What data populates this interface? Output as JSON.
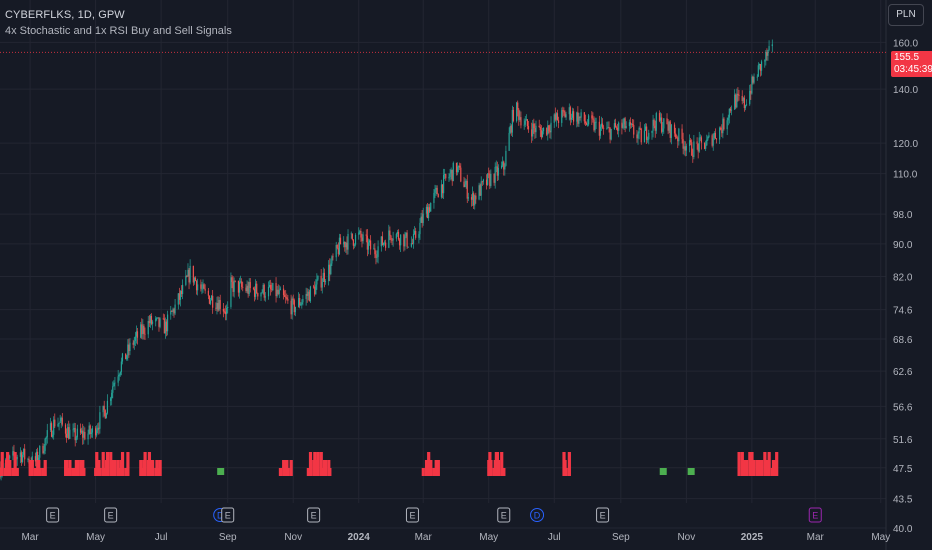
{
  "header": {
    "symbol_line": "CYBERFLKS, 1D, GPW",
    "indicator_line": "4x Stochastic and 1x RSI Buy and Sell Signals"
  },
  "toolbar": {
    "currency": "PLN"
  },
  "last_price": {
    "value": "155.5",
    "countdown": "03:45:39",
    "color": "#f23645"
  },
  "colors": {
    "background": "#161a25",
    "grid": "#232632",
    "up": "#26a69a",
    "down": "#ef5350",
    "sell_signal": "#f23645",
    "buy_signal": "#4caf50"
  },
  "chart_data": {
    "type": "candlestick",
    "title": "",
    "xlabel": "",
    "ylabel": "",
    "y_scale": "log",
    "ylim": [
      40.0,
      162.0
    ],
    "x_range": [
      "2023-02-01",
      "2025-05-31"
    ],
    "y_ticks": [
      160.0,
      140.0,
      120.0,
      110.0,
      98.0,
      90.0,
      82.0,
      74.6,
      68.6,
      62.6,
      56.6,
      51.6,
      47.5,
      43.5,
      40.0
    ],
    "x_ticks": [
      {
        "date": "2023-03-01",
        "label": "Mar",
        "bold": false
      },
      {
        "date": "2023-05-01",
        "label": "May",
        "bold": false
      },
      {
        "date": "2023-07-01",
        "label": "Jul",
        "bold": false
      },
      {
        "date": "2023-09-01",
        "label": "Sep",
        "bold": false
      },
      {
        "date": "2023-11-01",
        "label": "Nov",
        "bold": false
      },
      {
        "date": "2024-01-01",
        "label": "2024",
        "bold": true
      },
      {
        "date": "2024-03-01",
        "label": "Mar",
        "bold": false
      },
      {
        "date": "2024-05-01",
        "label": "May",
        "bold": false
      },
      {
        "date": "2024-07-01",
        "label": "Jul",
        "bold": false
      },
      {
        "date": "2024-09-01",
        "label": "Sep",
        "bold": false
      },
      {
        "date": "2024-11-01",
        "label": "Nov",
        "bold": false
      },
      {
        "date": "2025-01-01",
        "label": "2025",
        "bold": true
      },
      {
        "date": "2025-03-01",
        "label": "Mar",
        "bold": false
      },
      {
        "date": "2025-05-01",
        "label": "May",
        "bold": false
      }
    ],
    "price_path": [
      [
        "2023-02-01",
        47.5
      ],
      [
        "2023-02-20",
        49.5
      ],
      [
        "2023-03-05",
        48.0
      ],
      [
        "2023-03-25",
        54.5
      ],
      [
        "2023-04-10",
        52.0
      ],
      [
        "2023-04-28",
        52.5
      ],
      [
        "2023-05-10",
        56.0
      ],
      [
        "2023-05-20",
        62.0
      ],
      [
        "2023-06-05",
        68.0
      ],
      [
        "2023-06-20",
        72.0
      ],
      [
        "2023-07-05",
        71.0
      ],
      [
        "2023-07-20",
        78.0
      ],
      [
        "2023-07-28",
        83.0
      ],
      [
        "2023-08-10",
        78.0
      ],
      [
        "2023-08-25",
        76.0
      ],
      [
        "2023-09-01",
        74.0
      ],
      [
        "2023-09-03",
        80.0
      ],
      [
        "2023-09-20",
        79.0
      ],
      [
        "2023-10-15",
        78.5
      ],
      [
        "2023-11-01",
        75.0
      ],
      [
        "2023-11-20",
        79.0
      ],
      [
        "2023-12-05",
        84.0
      ],
      [
        "2023-12-15",
        90.0
      ],
      [
        "2024-01-01",
        92.0
      ],
      [
        "2024-01-15",
        88.0
      ],
      [
        "2024-02-01",
        93.0
      ],
      [
        "2024-02-20",
        90.0
      ],
      [
        "2024-03-01",
        97.0
      ],
      [
        "2024-03-15",
        105.0
      ],
      [
        "2024-04-01",
        112.0
      ],
      [
        "2024-04-15",
        102.0
      ],
      [
        "2024-05-01",
        108.0
      ],
      [
        "2024-05-15",
        112.0
      ],
      [
        "2024-05-25",
        133.0
      ],
      [
        "2024-06-05",
        126.0
      ],
      [
        "2024-06-20",
        124.0
      ],
      [
        "2024-07-01",
        128.0
      ],
      [
        "2024-07-15",
        131.0
      ],
      [
        "2024-08-01",
        127.0
      ],
      [
        "2024-08-20",
        124.0
      ],
      [
        "2024-09-05",
        126.0
      ],
      [
        "2024-09-20",
        122.0
      ],
      [
        "2024-10-05",
        128.0
      ],
      [
        "2024-10-20",
        124.0
      ],
      [
        "2024-11-05",
        118.0
      ],
      [
        "2024-11-20",
        120.0
      ],
      [
        "2024-12-05",
        126.0
      ],
      [
        "2024-12-15",
        136.0
      ],
      [
        "2024-12-25",
        134.0
      ],
      [
        "2025-01-05",
        146.0
      ],
      [
        "2025-01-15",
        154.0
      ],
      [
        "2025-01-20",
        155.5
      ]
    ],
    "sell_signal_periods": [
      [
        "2023-02-01",
        "2023-02-18"
      ],
      [
        "2023-03-01",
        "2023-03-15"
      ],
      [
        "2023-04-01",
        "2023-04-20"
      ],
      [
        "2023-05-01",
        "2023-05-31"
      ],
      [
        "2023-06-10",
        "2023-06-30"
      ],
      [
        "2023-10-20",
        "2023-10-30"
      ],
      [
        "2023-11-15",
        "2023-12-05"
      ],
      [
        "2024-03-01",
        "2024-03-15"
      ],
      [
        "2024-05-01",
        "2024-05-15"
      ],
      [
        "2024-07-10",
        "2024-07-15"
      ],
      [
        "2024-12-20",
        "2025-01-25"
      ]
    ],
    "buy_signal_dates": [
      "2023-08-25",
      "2024-10-10",
      "2024-11-05"
    ],
    "event_markers": [
      {
        "date": "2023-03-22",
        "label": "E",
        "color": "#b2b5be"
      },
      {
        "date": "2023-05-15",
        "label": "E",
        "color": "#b2b5be"
      },
      {
        "date": "2023-08-25",
        "label": "D",
        "color": "#2962ff"
      },
      {
        "date": "2023-09-01",
        "label": "E",
        "color": "#b2b5be"
      },
      {
        "date": "2023-11-20",
        "label": "E",
        "color": "#b2b5be"
      },
      {
        "date": "2024-02-20",
        "label": "E",
        "color": "#b2b5be"
      },
      {
        "date": "2024-05-15",
        "label": "E",
        "color": "#b2b5be"
      },
      {
        "date": "2024-06-15",
        "label": "D",
        "color": "#2962ff"
      },
      {
        "date": "2024-08-15",
        "label": "E",
        "color": "#b2b5be"
      },
      {
        "date": "2025-03-01",
        "label": "E",
        "color": "#9c27b0"
      }
    ]
  }
}
